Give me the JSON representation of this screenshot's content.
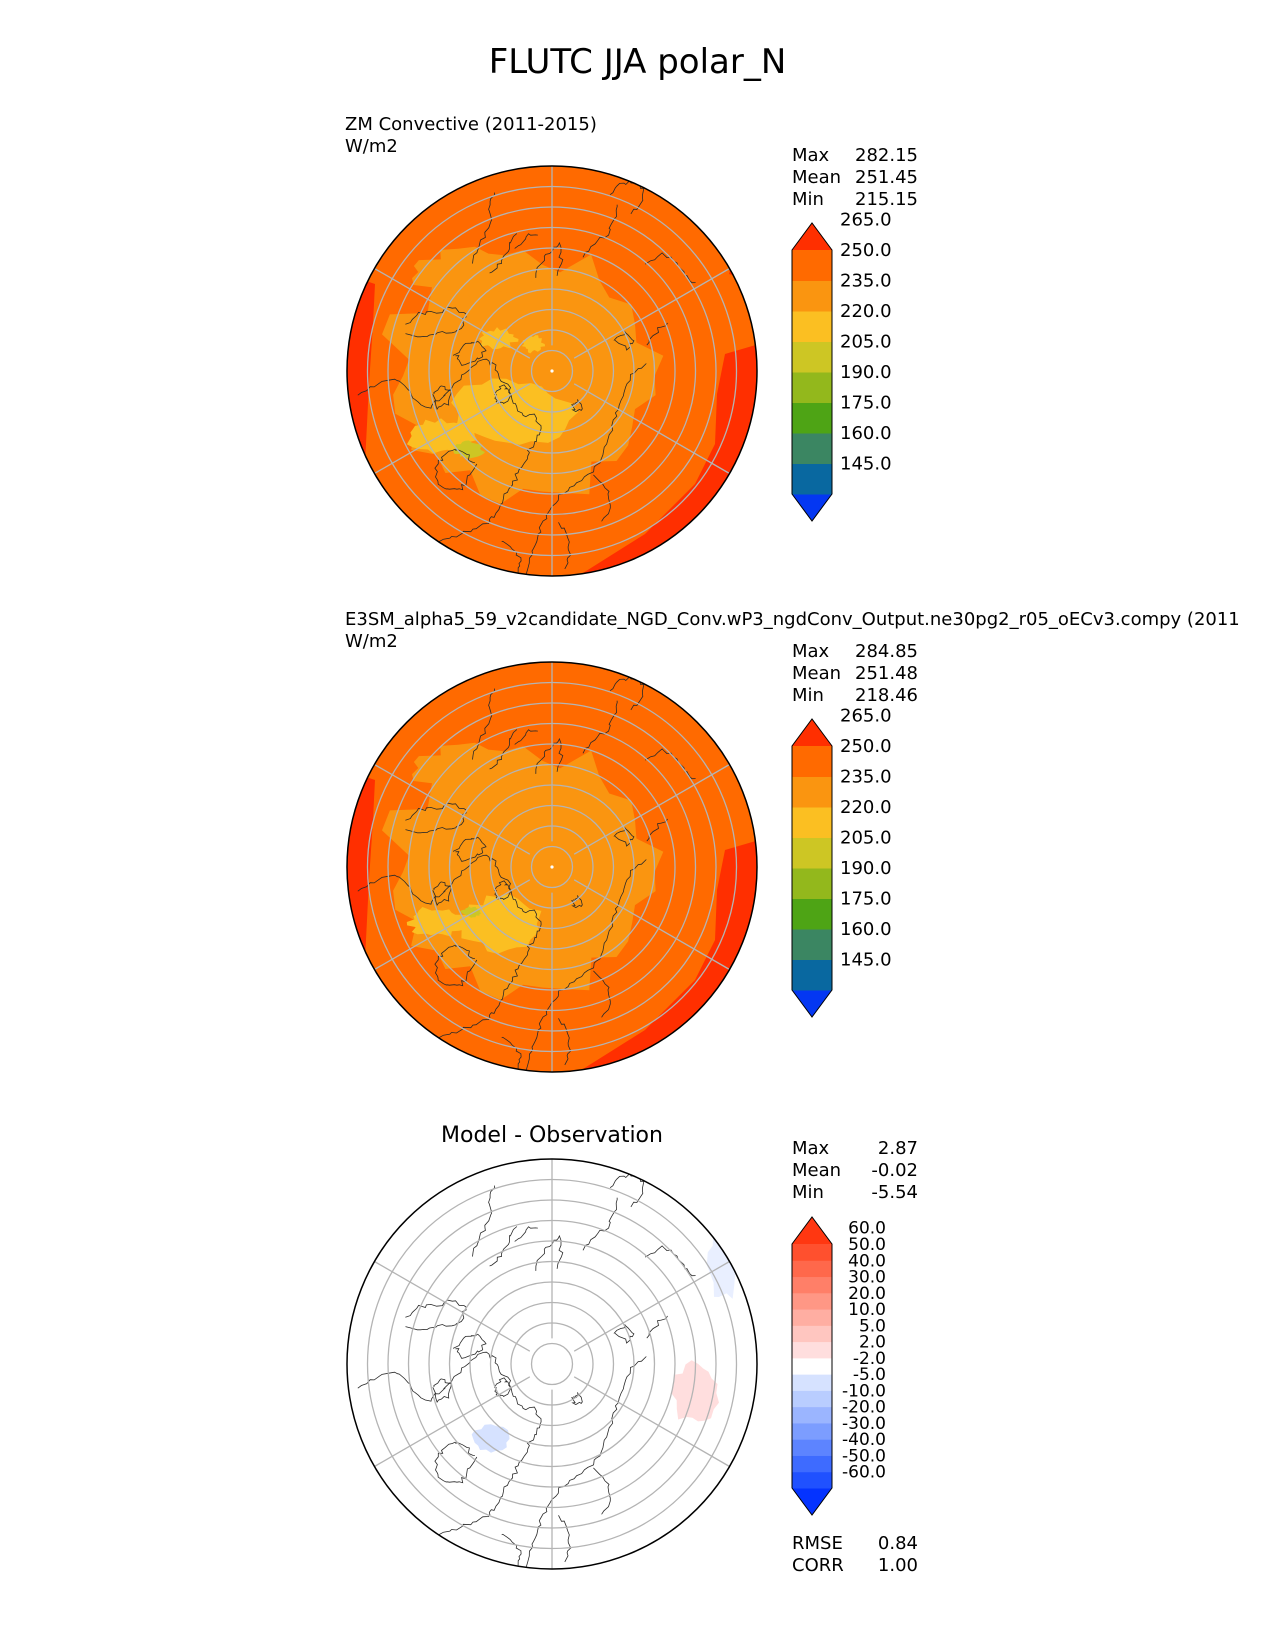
{
  "figure": {
    "title": "FLUTC JJA polar_N"
  },
  "colors": {
    "abs_levels": [
      "#0437f2",
      "#0968a0",
      "#3b8662",
      "#4ea415",
      "#93b81c",
      "#cdc624",
      "#fbbf22",
      "#fa9510",
      "#ff6a00",
      "#ff2f00"
    ],
    "diff_levels": [
      "#0433ff",
      "#2051ff",
      "#3e6bff",
      "#5d84ff",
      "#7c9dff",
      "#9bb5ff",
      "#b9cdff",
      "#d6e2ff",
      "#ffffff",
      "#ffdede",
      "#ffc6c0",
      "#ffaea2",
      "#ff9785",
      "#ff7f68",
      "#ff684b",
      "#ff502e",
      "#ff3711"
    ],
    "graticule": "#b4b4b4",
    "coast": "#2a2a2a"
  },
  "chart_data": [
    {
      "type": "heatmap",
      "projection": "north polar stereographic",
      "title": "ZM Convective (2011-2015)",
      "units": "W/m2",
      "stats": {
        "max_label": "Max",
        "max": "282.15",
        "mean_label": "Mean",
        "mean": "251.45",
        "min_label": "Min",
        "min": "215.15"
      },
      "colorbar": {
        "levels": [
          "145.0",
          "160.0",
          "175.0",
          "190.0",
          "205.0",
          "220.0",
          "235.0",
          "250.0",
          "265.0"
        ],
        "extend": "both"
      },
      "field_pattern": "reference"
    },
    {
      "type": "heatmap",
      "projection": "north polar stereographic",
      "title": "E3SM_alpha5_59_v2candidate_NGD_Conv.wP3_ngdConv_Output.ne30pg2_r05_oECv3.compy (2011",
      "units": "W/m2",
      "stats": {
        "max_label": "Max",
        "max": "284.85",
        "mean_label": "Mean",
        "mean": "251.48",
        "min_label": "Min",
        "min": "218.46"
      },
      "colorbar": {
        "levels": [
          "145.0",
          "160.0",
          "175.0",
          "190.0",
          "205.0",
          "220.0",
          "235.0",
          "250.0",
          "265.0"
        ],
        "extend": "both"
      },
      "field_pattern": "model"
    },
    {
      "type": "heatmap",
      "projection": "north polar stereographic",
      "title": "Model - Observation",
      "units": "",
      "stats": {
        "max_label": "Max",
        "max": "2.87",
        "mean_label": "Mean",
        "mean": "-0.02",
        "min_label": "Min",
        "min": "-5.54"
      },
      "colorbar": {
        "levels": [
          "-60.0",
          "-50.0",
          "-40.0",
          "-30.0",
          "-20.0",
          "-10.0",
          "-5.0",
          "-2.0",
          "2.0",
          "5.0",
          "10.0",
          "20.0",
          "30.0",
          "40.0",
          "50.0",
          "60.0"
        ],
        "extend": "both"
      },
      "metrics": {
        "rmse_label": "RMSE",
        "rmse": "0.84",
        "corr_label": "CORR",
        "corr": "1.00"
      },
      "field_pattern": "difference"
    }
  ]
}
